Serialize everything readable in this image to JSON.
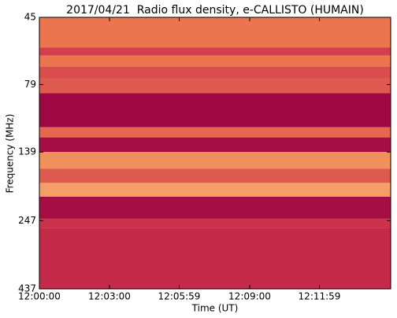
{
  "chart_data": {
    "type": "heatmap",
    "title": "2017/04/21  Radio flux density, e-CALLISTO (HUMAIN)",
    "xlabel": "Time (UT)",
    "ylabel": "Frequency (MHz)",
    "xlim": [
      0,
      902
    ],
    "xticks": [
      {
        "value": 0,
        "label": "12:00:00"
      },
      {
        "value": 180,
        "label": "12:03:00"
      },
      {
        "value": 359,
        "label": "12:05:59"
      },
      {
        "value": 540,
        "label": "12:09:00"
      },
      {
        "value": 719,
        "label": "12:11:59"
      }
    ],
    "ylim": [
      45,
      437
    ],
    "y_inverted": true,
    "y_log": true,
    "yticks": [
      45,
      79,
      139,
      247,
      437
    ],
    "y_edges": [
      45,
      58,
      62,
      68,
      75,
      85,
      113,
      123,
      139,
      160,
      180,
      202,
      243,
      263,
      437
    ],
    "intensity": [
      0.6,
      0.4,
      0.6,
      0.45,
      0.5,
      0.05,
      0.55,
      0.1,
      0.7,
      0.5,
      0.75,
      0.1,
      0.35,
      0.3
    ]
  }
}
